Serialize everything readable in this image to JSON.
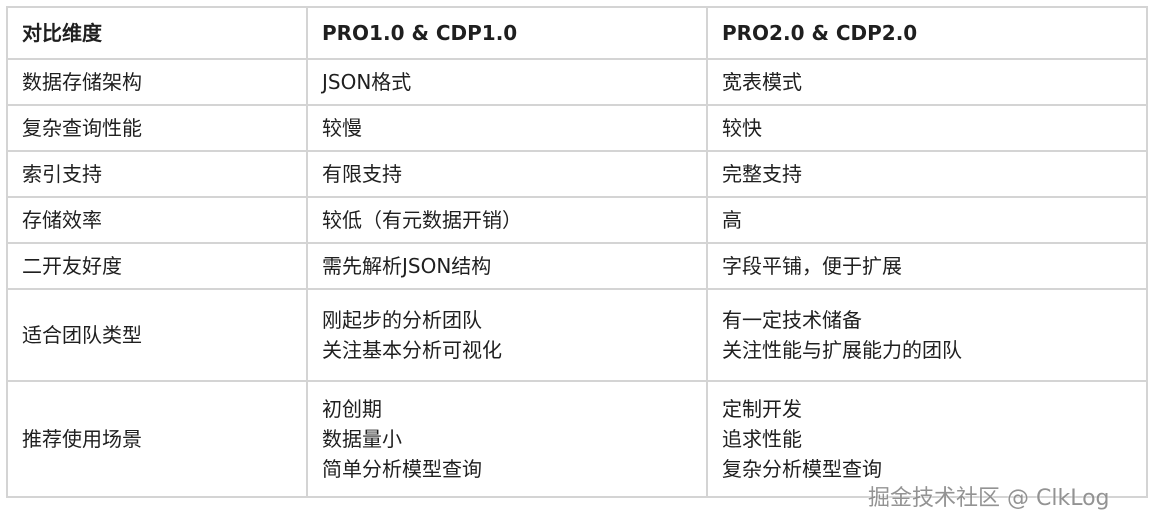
{
  "headers": [
    "对比维度",
    "PRO1.0 & CDP1.0",
    "PRO2.0 & CDP2.0"
  ],
  "rows": [
    [
      "数据存储架构",
      "JSON格式",
      "宽表模式"
    ],
    [
      "复杂查询性能",
      "较慢",
      "较快"
    ],
    [
      "索引支持",
      "有限支持",
      "完整支持"
    ],
    [
      "存储效率",
      "较低（有元数据开销）",
      "高"
    ],
    [
      "二开友好度",
      "需先解析JSON结构",
      "字段平铺，便于扩展"
    ]
  ],
  "team": {
    "label": "适合团队类型",
    "v1": [
      "刚起步的分析团队",
      "关注基本分析可视化"
    ],
    "v2": [
      "有一定技术储备",
      "关注性能与扩展能力的团队"
    ]
  },
  "scene": {
    "label": "推荐使用场景",
    "v1": [
      "初创期",
      "数据量小",
      "简单分析模型查询"
    ],
    "v2": [
      "定制开发",
      "追求性能",
      "复杂分析模型查询"
    ]
  },
  "watermark": "掘金技术社区 @ ClkLog"
}
